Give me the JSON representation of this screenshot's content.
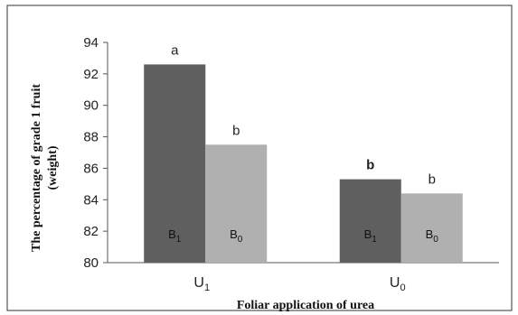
{
  "chart_data": {
    "type": "bar",
    "title": "",
    "xlabel": "Foliar application of urea",
    "ylabel": "The percentage of grade 1 fruit (weight)",
    "ylabel_lines": [
      "The percentage of grade 1 fruit",
      "(weight)"
    ],
    "ylim": [
      80,
      94
    ],
    "yticks": [
      80,
      82,
      84,
      86,
      88,
      90,
      92,
      94
    ],
    "grid": false,
    "legend": "none",
    "categories": [
      {
        "base": "U",
        "sub": "1"
      },
      {
        "base": "U",
        "sub": "0"
      }
    ],
    "series": [
      {
        "base": "B",
        "sub": "1",
        "color": "#5f5f5f",
        "values": [
          92.6,
          85.3
        ],
        "significance": [
          "a",
          "b"
        ],
        "significance_weight": [
          "normal",
          "bold"
        ]
      },
      {
        "base": "B",
        "sub": "0",
        "color": "#b0b0b0",
        "values": [
          87.5,
          84.4
        ],
        "significance": [
          "b",
          "b"
        ],
        "significance_weight": [
          "normal",
          "normal"
        ]
      }
    ]
  }
}
